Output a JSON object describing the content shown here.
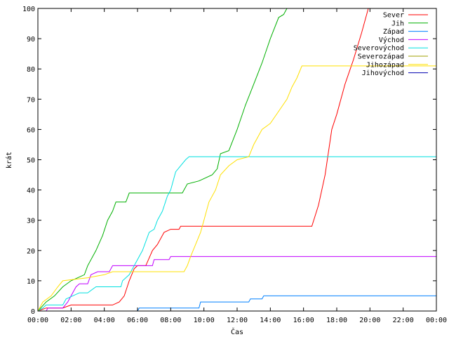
{
  "chart_data": {
    "type": "line",
    "xlabel": "Čas",
    "ylabel": "krát",
    "xlim": [
      0,
      24
    ],
    "ylim": [
      0,
      100
    ],
    "x_ticks": [
      {
        "v": 0,
        "label": "00:00"
      },
      {
        "v": 2,
        "label": "02:00"
      },
      {
        "v": 4,
        "label": "04:00"
      },
      {
        "v": 6,
        "label": "06:00"
      },
      {
        "v": 8,
        "label": "08:00"
      },
      {
        "v": 10,
        "label": "10:00"
      },
      {
        "v": 12,
        "label": "12:00"
      },
      {
        "v": 14,
        "label": "14:00"
      },
      {
        "v": 16,
        "label": "16:00"
      },
      {
        "v": 18,
        "label": "18:00"
      },
      {
        "v": 20,
        "label": "20:00"
      },
      {
        "v": 22,
        "label": "22:00"
      },
      {
        "v": 24,
        "label": "00:00"
      }
    ],
    "y_ticks": [
      {
        "v": 0,
        "label": "0"
      },
      {
        "v": 10,
        "label": "10"
      },
      {
        "v": 20,
        "label": "20"
      },
      {
        "v": 30,
        "label": "30"
      },
      {
        "v": 40,
        "label": "40"
      },
      {
        "v": 50,
        "label": "50"
      },
      {
        "v": 60,
        "label": "60"
      },
      {
        "v": 70,
        "label": "70"
      },
      {
        "v": 80,
        "label": "80"
      },
      {
        "v": 90,
        "label": "90"
      },
      {
        "v": 100,
        "label": "100"
      }
    ],
    "grid": false,
    "legend_position": "top-right",
    "series": [
      {
        "name": "Sever",
        "color": "#ff0000",
        "points": [
          [
            0,
            0
          ],
          [
            0.5,
            1
          ],
          [
            1.5,
            1
          ],
          [
            2.0,
            2
          ],
          [
            4.5,
            2
          ],
          [
            4.9,
            3
          ],
          [
            5.2,
            5
          ],
          [
            5.5,
            10
          ],
          [
            5.8,
            14
          ],
          [
            6.0,
            15
          ],
          [
            6.5,
            15
          ],
          [
            6.9,
            20
          ],
          [
            7.2,
            22
          ],
          [
            7.6,
            26
          ],
          [
            8.0,
            27
          ],
          [
            8.5,
            27
          ],
          [
            8.6,
            28
          ],
          [
            16.5,
            28
          ],
          [
            16.9,
            35
          ],
          [
            17.3,
            45
          ],
          [
            17.7,
            60
          ],
          [
            18.0,
            65
          ],
          [
            18.5,
            75
          ],
          [
            19.0,
            83
          ],
          [
            19.5,
            92
          ],
          [
            19.9,
            100
          ]
        ]
      },
      {
        "name": "Jih",
        "color": "#00b000",
        "points": [
          [
            0,
            0
          ],
          [
            0.5,
            3
          ],
          [
            1.0,
            5
          ],
          [
            1.5,
            8
          ],
          [
            2.0,
            10
          ],
          [
            2.8,
            12
          ],
          [
            3.0,
            15
          ],
          [
            3.5,
            20
          ],
          [
            3.9,
            25
          ],
          [
            4.2,
            30
          ],
          [
            4.5,
            33
          ],
          [
            4.7,
            36
          ],
          [
            5.3,
            36
          ],
          [
            5.5,
            39
          ],
          [
            8.7,
            39
          ],
          [
            9.0,
            42
          ],
          [
            9.7,
            43
          ],
          [
            10.5,
            45
          ],
          [
            10.8,
            47
          ],
          [
            11.0,
            52
          ],
          [
            11.5,
            53
          ],
          [
            12.0,
            60
          ],
          [
            12.5,
            68
          ],
          [
            13.0,
            75
          ],
          [
            13.5,
            82
          ],
          [
            14.0,
            90
          ],
          [
            14.5,
            97
          ],
          [
            14.8,
            98
          ],
          [
            15.0,
            100
          ]
        ]
      },
      {
        "name": "Západ",
        "color": "#0080ff",
        "points": [
          [
            0,
            0
          ],
          [
            6.0,
            0
          ],
          [
            6.1,
            1
          ],
          [
            9.7,
            1
          ],
          [
            9.8,
            3
          ],
          [
            12.7,
            3
          ],
          [
            12.8,
            4
          ],
          [
            13.5,
            4
          ],
          [
            13.6,
            5
          ],
          [
            24,
            5
          ]
        ]
      },
      {
        "name": "Východ",
        "color": "#c000ff",
        "points": [
          [
            0,
            0
          ],
          [
            0.5,
            0
          ],
          [
            0.6,
            1
          ],
          [
            1.5,
            1
          ],
          [
            1.8,
            3
          ],
          [
            2.0,
            5
          ],
          [
            2.3,
            8
          ],
          [
            2.5,
            9
          ],
          [
            3.0,
            9
          ],
          [
            3.2,
            12
          ],
          [
            3.6,
            13
          ],
          [
            4.3,
            13
          ],
          [
            4.5,
            15
          ],
          [
            6.9,
            15
          ],
          [
            7.0,
            17
          ],
          [
            7.9,
            17
          ],
          [
            8.0,
            18
          ],
          [
            24,
            18
          ]
        ]
      },
      {
        "name": "Severovýchod",
        "color": "#00e0e0",
        "points": [
          [
            0,
            0
          ],
          [
            0.3,
            1
          ],
          [
            0.5,
            2
          ],
          [
            1.5,
            2
          ],
          [
            1.7,
            4
          ],
          [
            2.5,
            6
          ],
          [
            3.0,
            6
          ],
          [
            3.5,
            8
          ],
          [
            5.0,
            8
          ],
          [
            5.1,
            10
          ],
          [
            5.5,
            12
          ],
          [
            5.8,
            15
          ],
          [
            6.3,
            20
          ],
          [
            6.7,
            26
          ],
          [
            7.0,
            27
          ],
          [
            7.2,
            30
          ],
          [
            7.5,
            33
          ],
          [
            7.8,
            38
          ],
          [
            8.0,
            40
          ],
          [
            8.3,
            46
          ],
          [
            8.6,
            48
          ],
          [
            8.9,
            50
          ],
          [
            9.1,
            51
          ],
          [
            24,
            51
          ]
        ]
      },
      {
        "name": "Severozápad",
        "color": "#a0a000",
        "points": []
      },
      {
        "name": "Jihozápad",
        "color": "#ffe000",
        "points": [
          [
            0,
            0
          ],
          [
            0.3,
            3
          ],
          [
            0.8,
            5
          ],
          [
            1.2,
            8
          ],
          [
            1.5,
            10
          ],
          [
            3.0,
            11
          ],
          [
            4.0,
            12
          ],
          [
            4.5,
            13
          ],
          [
            8.8,
            13
          ],
          [
            9.0,
            15
          ],
          [
            9.2,
            18
          ],
          [
            9.5,
            22
          ],
          [
            9.8,
            26
          ],
          [
            10.0,
            30
          ],
          [
            10.3,
            36
          ],
          [
            10.7,
            40
          ],
          [
            11.0,
            45
          ],
          [
            11.5,
            48
          ],
          [
            12.0,
            50
          ],
          [
            12.7,
            51
          ],
          [
            13.0,
            55
          ],
          [
            13.5,
            60
          ],
          [
            14.0,
            62
          ],
          [
            14.5,
            66
          ],
          [
            15.0,
            70
          ],
          [
            15.3,
            74
          ],
          [
            15.6,
            77
          ],
          [
            15.9,
            81
          ],
          [
            24,
            81
          ]
        ]
      },
      {
        "name": "Jihovýchod",
        "color": "#0000b0",
        "points": []
      }
    ]
  }
}
